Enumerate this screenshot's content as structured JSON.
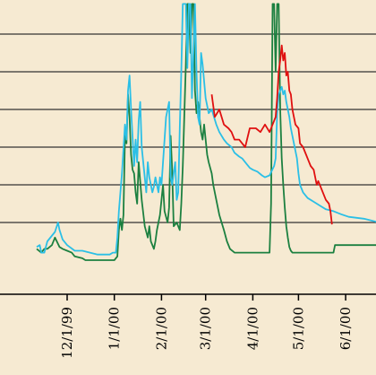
{
  "chart_data": {
    "type": "line",
    "title": "",
    "xlabel": "",
    "ylabel": "",
    "xlim": [
      -20,
      395
    ],
    "ylim": [
      0,
      6.8
    ],
    "x_tick_labels": [
      "12/1/99",
      "1/1/00",
      "2/1/00",
      "3/1/00",
      "4/1/00",
      "5/1/00",
      "6/1/00",
      "7/1/00"
    ],
    "x_tick_days": [
      0,
      31,
      62,
      91,
      122,
      152,
      183,
      213
    ],
    "gridlines_y": [
      1,
      2,
      3,
      4,
      5,
      6
    ],
    "grid": true,
    "colors": {
      "background": "#f6ead2",
      "grid": "#333333",
      "cyan": "#2bbfe6",
      "green": "#1c8040",
      "red": "#e01010"
    },
    "series": [
      {
        "color": "#2bbfe6",
        "x": [
          -20,
          -18,
          -17,
          -16,
          -15,
          -13,
          -8,
          -6,
          -5,
          -3,
          0,
          5,
          10,
          15,
          20,
          25,
          28,
          30,
          32,
          33,
          34,
          36,
          38,
          39,
          40,
          41,
          42,
          44,
          45,
          46,
          47,
          48,
          49,
          51,
          52,
          53,
          54,
          56,
          57,
          58,
          60,
          61,
          62,
          63,
          65,
          67,
          68,
          69,
          71,
          72,
          73,
          74,
          75,
          76,
          78,
          79,
          80,
          81,
          82,
          84,
          85,
          86,
          87,
          88,
          89,
          91,
          93,
          95,
          98,
          100,
          103,
          105,
          108,
          110,
          113,
          115,
          118,
          120,
          122,
          125,
          128,
          130,
          133,
          136,
          137,
          138,
          139,
          141,
          142,
          143,
          144,
          146,
          147,
          149,
          151,
          152,
          153,
          155,
          158,
          162,
          166,
          170,
          175,
          180,
          185,
          195,
          200,
          205,
          210,
          213,
          215,
          220,
          225,
          230
        ],
        "y": [
          0.35,
          0.4,
          0.2,
          0.2,
          0.2,
          0.5,
          0.75,
          1.0,
          0.8,
          0.55,
          0.4,
          0.25,
          0.25,
          0.2,
          0.15,
          0.15,
          0.15,
          0.2,
          0.2,
          0.6,
          1.3,
          2.3,
          3.6,
          3.2,
          4.5,
          4.9,
          4.0,
          2.5,
          3.2,
          2.6,
          3.7,
          4.2,
          3.0,
          2.2,
          1.8,
          2.6,
          2.2,
          1.8,
          1.95,
          2.2,
          1.8,
          2.2,
          2.0,
          2.6,
          3.8,
          4.2,
          2.2,
          2.0,
          2.6,
          1.6,
          1.8,
          3.5,
          5.0,
          6.8,
          6.8,
          5.1,
          6.8,
          6.8,
          4.3,
          6.8,
          5.0,
          3.8,
          3.6,
          5.5,
          5.2,
          4.3,
          3.9,
          4.0,
          3.6,
          3.4,
          3.2,
          3.1,
          3.0,
          2.85,
          2.75,
          2.7,
          2.55,
          2.45,
          2.4,
          2.35,
          2.25,
          2.2,
          2.25,
          2.5,
          2.7,
          3.9,
          4.4,
          4.6,
          4.4,
          4.5,
          4.2,
          3.8,
          3.5,
          3.1,
          2.7,
          2.3,
          2.0,
          1.8,
          1.65,
          1.55,
          1.45,
          1.35,
          1.3,
          1.22,
          1.15,
          1.1,
          1.05,
          1.0,
          0.9,
          0.8,
          0.7,
          0.6,
          0.5,
          0.4
        ]
      },
      {
        "color": "#1c8040",
        "x": [
          -20,
          -17,
          -15,
          -13,
          -10,
          -8,
          -5,
          -3,
          0,
          3,
          5,
          10,
          12,
          15,
          20,
          25,
          30,
          31,
          33,
          34,
          35,
          36,
          37,
          38,
          39,
          40,
          41,
          42,
          43,
          44,
          45,
          46,
          47,
          49,
          51,
          53,
          54,
          55,
          57,
          58,
          59,
          61,
          63,
          64,
          66,
          67,
          68,
          69,
          70,
          72,
          74,
          75,
          76,
          78,
          79,
          80,
          81,
          82,
          83,
          84,
          85,
          86,
          88,
          89,
          90,
          92,
          93,
          95,
          96,
          98,
          100,
          103,
          105,
          107,
          110,
          112,
          115,
          120,
          125,
          130,
          133,
          134,
          135,
          136,
          137,
          138,
          139,
          140,
          141,
          142,
          143,
          144,
          145,
          146,
          147,
          148,
          150,
          153,
          155,
          160,
          165,
          170,
          175,
          176,
          180,
          190,
          200,
          210,
          220,
          230
        ],
        "y": [
          0.3,
          0.2,
          0.3,
          0.3,
          0.4,
          0.6,
          0.35,
          0.3,
          0.25,
          0.2,
          0.1,
          0.05,
          0.0,
          0.0,
          0.0,
          0.0,
          0.0,
          0.0,
          0.1,
          0.8,
          1.1,
          0.8,
          1.2,
          3.3,
          3.1,
          4.4,
          3.8,
          2.8,
          2.4,
          2.3,
          1.8,
          1.5,
          2.6,
          1.6,
          0.9,
          0.6,
          0.9,
          0.5,
          0.3,
          0.5,
          0.8,
          1.2,
          2.0,
          1.3,
          1.0,
          1.4,
          3.3,
          2.4,
          0.9,
          1.0,
          0.8,
          1.5,
          2.5,
          5.2,
          6.8,
          6.8,
          5.5,
          6.8,
          6.8,
          4.5,
          3.9,
          4.2,
          3.4,
          3.2,
          3.6,
          2.8,
          2.6,
          2.3,
          2.0,
          1.6,
          1.2,
          0.8,
          0.5,
          0.3,
          0.2,
          0.2,
          0.2,
          0.2,
          0.2,
          0.2,
          0.2,
          1.5,
          6.8,
          6.8,
          5.0,
          6.8,
          6.8,
          4.0,
          2.7,
          2.0,
          1.4,
          0.9,
          0.6,
          0.35,
          0.25,
          0.2,
          0.2,
          0.2,
          0.2,
          0.2,
          0.2,
          0.2,
          0.2,
          0.4,
          0.4,
          0.4,
          0.4,
          0.4,
          0.4,
          0.4
        ]
      },
      {
        "color": "#e01010",
        "x": [
          95,
          97,
          100,
          103,
          106,
          108,
          110,
          113,
          115,
          117,
          120,
          122,
          124,
          127,
          130,
          133,
          135,
          137,
          138,
          139,
          140,
          141,
          142,
          143,
          144,
          145,
          146,
          147,
          148,
          150,
          152,
          153,
          155,
          157,
          159,
          160,
          162,
          164,
          165,
          167,
          170,
          172,
          173,
          174
        ],
        "y": [
          4.4,
          3.8,
          4.0,
          3.6,
          3.5,
          3.4,
          3.2,
          3.2,
          3.1,
          3.0,
          3.5,
          3.5,
          3.5,
          3.4,
          3.6,
          3.4,
          3.6,
          3.8,
          4.3,
          5.0,
          5.3,
          5.7,
          5.3,
          5.5,
          4.9,
          5.0,
          4.5,
          4.4,
          4.0,
          3.6,
          3.5,
          3.1,
          3.0,
          2.8,
          2.6,
          2.5,
          2.4,
          2.0,
          2.1,
          1.9,
          1.6,
          1.5,
          1.3,
          0.95
        ]
      }
    ]
  }
}
